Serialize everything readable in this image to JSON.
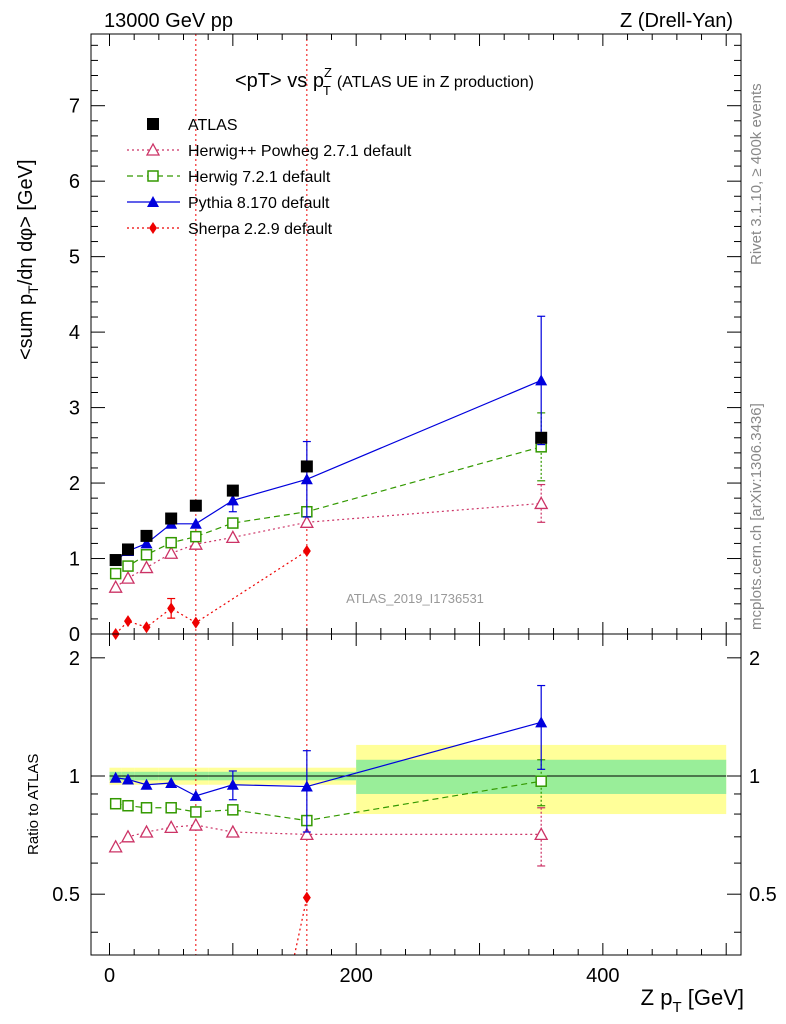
{
  "header": {
    "left": "13000 GeV pp",
    "right": "Z (Drell-Yan)"
  },
  "side": {
    "rivet": "Rivet 3.1.10, ≥ 400k events",
    "mcplots": "mcplots.cern.ch [arXiv:1306.3436]"
  },
  "watermark": "ATLAS_2019_I1736531",
  "chart_data": {
    "type": "line",
    "title": "<pT> vs pTZ (ATLAS UE in Z production)",
    "title_main": "<pT> vs p",
    "title_sup": "Z",
    "title_sub": "T",
    "title_rest": "(ATLAS UE in Z production)",
    "ylabel": "<sum pT/dη dφ> [GeV]",
    "ylabel_parts": [
      "<sum p",
      "T",
      "/dη dφ> [GeV]"
    ],
    "ratio_ylabel": "Ratio to ATLAS",
    "xlabel": "Z pT [GeV]",
    "xlabel_parts": [
      "Z p",
      "T",
      " [GeV]"
    ],
    "xlim": [
      -15,
      512
    ],
    "ylim": [
      0,
      7.95
    ],
    "ratio_ylim": [
      0.35,
      2.3
    ],
    "xticks": [
      0,
      200,
      400
    ],
    "xtick_labels": [
      "0",
      "200",
      "400"
    ],
    "yticks": [
      0,
      1,
      2,
      3,
      4,
      5,
      6,
      7
    ],
    "ytick_labels": [
      "0",
      "1",
      "2",
      "3",
      "4",
      "5",
      "6",
      "7"
    ],
    "ratio_yticks": [
      0.5,
      1,
      2
    ],
    "ratio_ytick_labels": [
      "0.5",
      "1",
      "2"
    ],
    "reference": {
      "name": "ATLAS",
      "x": [
        5,
        15,
        30,
        50,
        70,
        100,
        160,
        350
      ],
      "y": [
        0.98,
        1.12,
        1.3,
        1.53,
        1.7,
        1.9,
        2.22,
        2.6
      ],
      "bins": [
        [
          0,
          10
        ],
        [
          10,
          20
        ],
        [
          20,
          40
        ],
        [
          40,
          60
        ],
        [
          60,
          80
        ],
        [
          80,
          120
        ],
        [
          120,
          200
        ],
        [
          200,
          500
        ]
      ],
      "ratio_band_inner": [
        0.025,
        0.025,
        0.025,
        0.025,
        0.025,
        0.025,
        0.025,
        0.1
      ],
      "ratio_band_outer": [
        0.05,
        0.05,
        0.05,
        0.05,
        0.05,
        0.05,
        0.05,
        0.2
      ]
    },
    "series": [
      {
        "name": "Herwig++ Powheg 2.7.1 default",
        "color": "#cc3366",
        "marker": "triangle-open",
        "dash": "2,3",
        "x": [
          5,
          15,
          30,
          50,
          70,
          100,
          160,
          350
        ],
        "values": [
          0.62,
          0.74,
          0.88,
          1.07,
          1.19,
          1.28,
          1.48,
          1.73
        ],
        "err_at": [
          350
        ],
        "err": [
          0.25
        ],
        "ratio": [
          0.66,
          0.7,
          0.72,
          0.74,
          0.75,
          0.72,
          0.71,
          0.71
        ],
        "ratio_err": [
          0.12
        ]
      },
      {
        "name": "Herwig 7.2.1 default",
        "color": "#339900",
        "marker": "square-open",
        "dash": "6,4",
        "x": [
          5,
          15,
          30,
          50,
          70,
          100,
          160,
          350
        ],
        "values": [
          0.8,
          0.9,
          1.05,
          1.21,
          1.29,
          1.47,
          1.62,
          2.48
        ],
        "err_at": [
          350
        ],
        "err": [
          0.45
        ],
        "ratio": [
          0.85,
          0.84,
          0.83,
          0.83,
          0.81,
          0.82,
          0.77,
          0.97
        ],
        "ratio_err": [
          0.13
        ]
      },
      {
        "name": "Pythia 8.170 default",
        "color": "#0000dd",
        "marker": "triangle-filled",
        "dash": "",
        "x": [
          5,
          15,
          30,
          50,
          70,
          100,
          160,
          350
        ],
        "values": [
          0.97,
          1.1,
          1.2,
          1.46,
          1.46,
          1.77,
          2.05,
          3.36
        ],
        "err_pts": [
          [
            100,
            0.15
          ],
          [
            160,
            0.5
          ],
          [
            350,
            0.85
          ]
        ],
        "ratio": [
          0.99,
          0.98,
          0.95,
          0.96,
          0.89,
          0.95,
          0.94,
          1.37
        ],
        "ratio_err_pts": [
          [
            100,
            0.08
          ],
          [
            160,
            0.22
          ],
          [
            350,
            0.33
          ]
        ]
      },
      {
        "name": "Sherpa 2.2.9 default",
        "color": "#ee0000",
        "marker": "diamond-filled",
        "dash": "2,3",
        "x": [
          5,
          15,
          30,
          50,
          70,
          160
        ],
        "values": [
          0.0,
          0.17,
          0.09,
          0.34,
          0.15,
          1.1
        ],
        "err_pts": [
          [
            50,
            0.13
          ]
        ],
        "ratio": [
          null,
          null,
          null,
          null,
          null,
          0.49
        ],
        "ratio_line_to": [
          [
            150,
            0.25
          ],
          [
            160,
            0.49
          ]
        ]
      }
    ],
    "vlines": [
      70,
      160
    ]
  }
}
